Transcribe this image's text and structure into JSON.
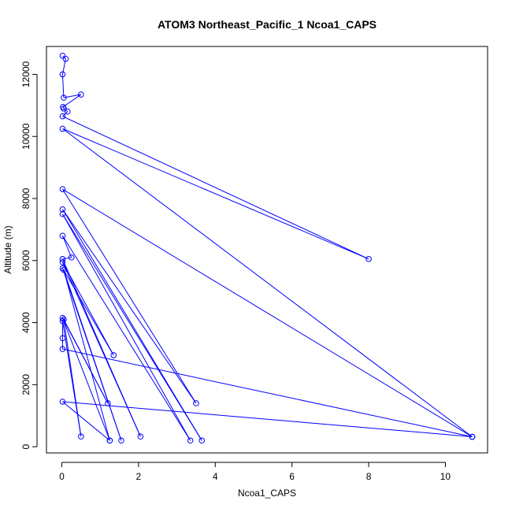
{
  "chart_data": {
    "type": "line",
    "title": "ATOM3 Northeast_Pacific_1 Ncoa1_CAPS",
    "xlabel": "Ncoa1_CAPS",
    "ylabel": "Altitude (m)",
    "xlim": [
      -0.4,
      11.1
    ],
    "ylim": [
      -200,
      12900
    ],
    "x_ticks": [
      0,
      2,
      4,
      6,
      8,
      10
    ],
    "y_ticks": [
      0,
      2000,
      4000,
      6000,
      8000,
      10000,
      12000
    ],
    "grid": false,
    "legend": "none",
    "series": [
      {
        "color": "#0000ff",
        "marker": "open-circle",
        "points": [
          {
            "x": 0.02,
            "y": 12600
          },
          {
            "x": 0.1,
            "y": 12500
          },
          {
            "x": 0.02,
            "y": 12000
          },
          {
            "x": 0.05,
            "y": 11250
          },
          {
            "x": 0.5,
            "y": 11350
          },
          {
            "x": 0.03,
            "y": 10950
          },
          {
            "x": 0.05,
            "y": 10900
          },
          {
            "x": 0.15,
            "y": 10800
          },
          {
            "x": 0.02,
            "y": 10650
          },
          {
            "x": 8.0,
            "y": 6050
          },
          {
            "x": 0.02,
            "y": 10250
          },
          {
            "x": 10.7,
            "y": 320
          },
          {
            "x": 0.02,
            "y": 8300
          },
          {
            "x": 3.5,
            "y": 1400
          },
          {
            "x": 0.02,
            "y": 7650
          },
          {
            "x": 3.65,
            "y": 200
          },
          {
            "x": 0.02,
            "y": 7500
          },
          {
            "x": 3.35,
            "y": 200
          },
          {
            "x": 0.02,
            "y": 6800
          },
          {
            "x": 0.25,
            "y": 6100
          },
          {
            "x": 0.02,
            "y": 6050
          },
          {
            "x": 2.05,
            "y": 330
          },
          {
            "x": 0.02,
            "y": 5950
          },
          {
            "x": 1.35,
            "y": 2950
          },
          {
            "x": 0.02,
            "y": 5750
          },
          {
            "x": 1.55,
            "y": 200
          },
          {
            "x": 0.05,
            "y": 5700
          },
          {
            "x": 1.25,
            "y": 200
          },
          {
            "x": 0.02,
            "y": 4150
          },
          {
            "x": 1.2,
            "y": 1400
          },
          {
            "x": 0.05,
            "y": 4100
          },
          {
            "x": 0.5,
            "y": 330
          },
          {
            "x": 0.02,
            "y": 4050
          },
          {
            "x": 0.02,
            "y": 3500
          },
          {
            "x": 0.02,
            "y": 3150
          },
          {
            "x": 10.7,
            "y": 320
          },
          {
            "x": 0.02,
            "y": 1450
          },
          {
            "x": 1.25,
            "y": 200
          }
        ]
      }
    ]
  }
}
